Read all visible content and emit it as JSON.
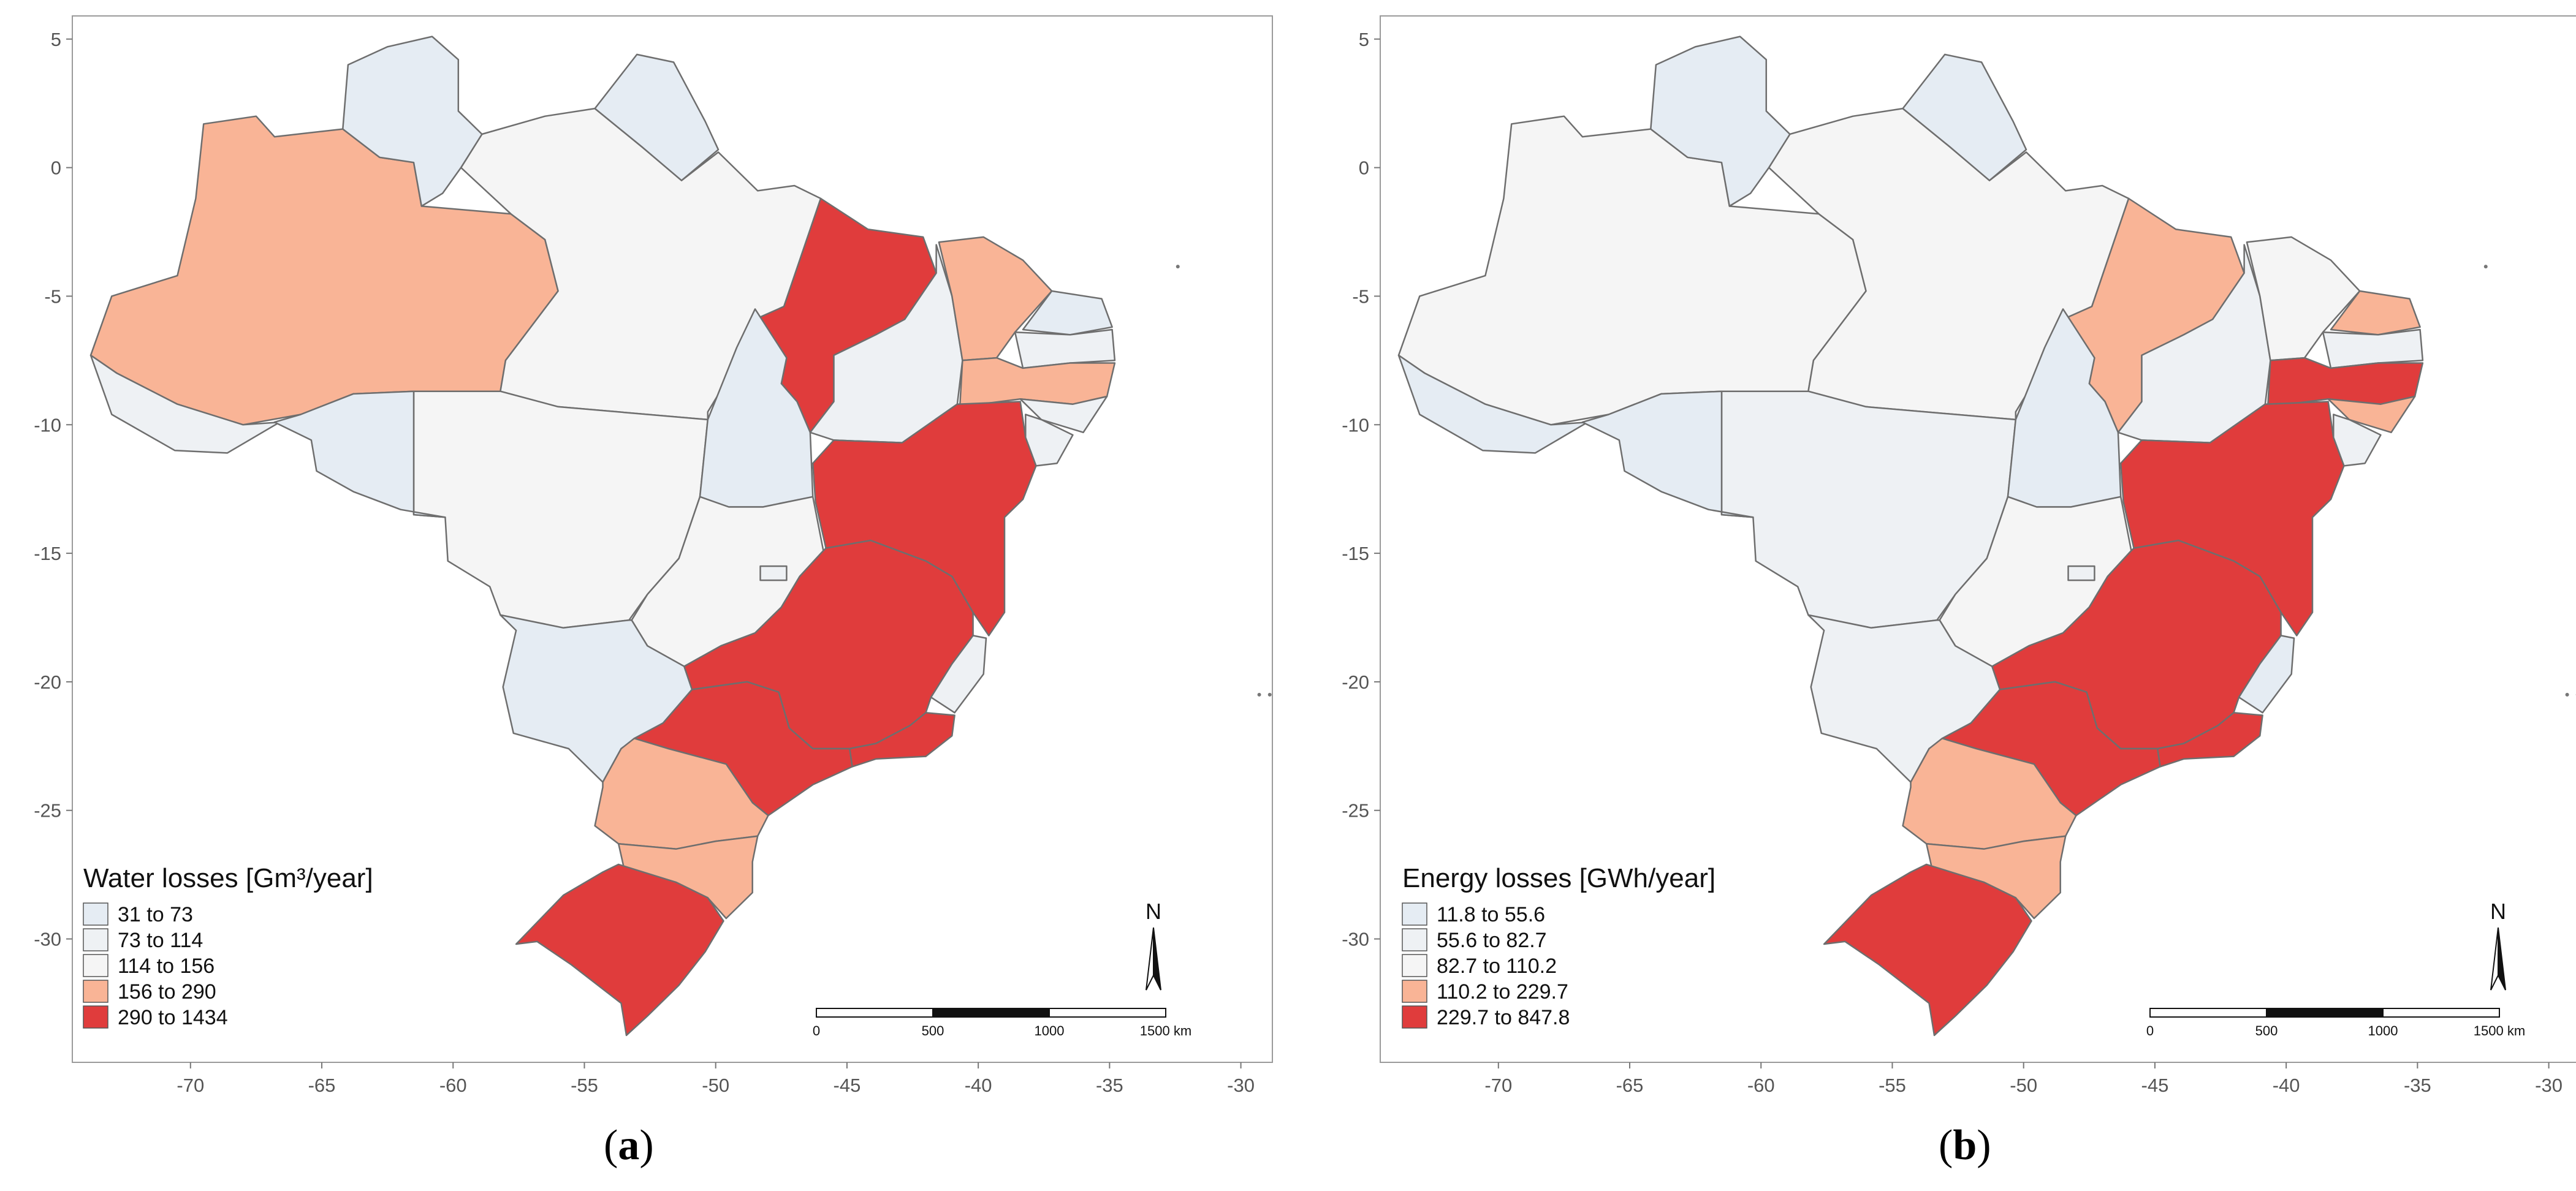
{
  "colors": {
    "class1": "#e5ecf3",
    "class2": "#eef1f4",
    "class3": "#f5f5f5",
    "class4": "#f9b496",
    "class5": "#e03c3c",
    "border": "#6e6e6e",
    "frame": "#9a9a9a"
  },
  "axes": {
    "x_ticks": [
      "-70",
      "-65",
      "-60",
      "-55",
      "-50",
      "-45",
      "-40",
      "-35",
      "-30"
    ],
    "x_values": [
      -70,
      -65,
      -60,
      -55,
      -50,
      -45,
      -40,
      -35,
      -30
    ],
    "y_ticks": [
      "5",
      "0",
      "-5",
      "-10",
      "-15",
      "-20",
      "-25",
      "-30"
    ],
    "y_values": [
      5,
      0,
      -5,
      -10,
      -15,
      -20,
      -25,
      -30
    ],
    "xlim": [
      -74.5,
      -28.8
    ],
    "ylim": [
      -34.8,
      5.9
    ]
  },
  "scalebar": {
    "ticks": [
      "0",
      "500",
      "1000",
      "1500 km"
    ]
  },
  "north_label": "N",
  "panels": [
    {
      "id": "a",
      "caption_letter": "a",
      "legend": {
        "title": "Water losses [Gm³/year]",
        "classes": [
          "31 to 73",
          "73 to 114",
          "114 to 156",
          "156 to 290",
          "290 to 1434"
        ]
      }
    },
    {
      "id": "b",
      "caption_letter": "b",
      "legend": {
        "title": "Energy losses [GWh/year]",
        "classes": [
          "11.8 to 55.6",
          "55.6 to 82.7",
          "82.7 to 110.2",
          "110.2 to 229.7",
          "229.7 to 847.8"
        ]
      }
    }
  ],
  "chart_data": {
    "type": "choropleth",
    "regions": [
      {
        "state": "AM",
        "water_class": 4,
        "energy_class": 3
      },
      {
        "state": "PA",
        "water_class": 3,
        "energy_class": 3
      },
      {
        "state": "MT",
        "water_class": 3,
        "energy_class": 2
      },
      {
        "state": "RR",
        "water_class": 1,
        "energy_class": 1
      },
      {
        "state": "AP",
        "water_class": 1,
        "energy_class": 1
      },
      {
        "state": "AC",
        "water_class": 2,
        "energy_class": 1
      },
      {
        "state": "RO",
        "water_class": 1,
        "energy_class": 1
      },
      {
        "state": "MA",
        "water_class": 5,
        "energy_class": 4
      },
      {
        "state": "TO",
        "water_class": 1,
        "energy_class": 1
      },
      {
        "state": "PI",
        "water_class": 2,
        "energy_class": 2
      },
      {
        "state": "CE",
        "water_class": 4,
        "energy_class": 3
      },
      {
        "state": "RN",
        "water_class": 1,
        "energy_class": 4
      },
      {
        "state": "PB",
        "water_class": 2,
        "energy_class": 2
      },
      {
        "state": "PE",
        "water_class": 4,
        "energy_class": 5
      },
      {
        "state": "AL",
        "water_class": 2,
        "energy_class": 4
      },
      {
        "state": "SE",
        "water_class": 2,
        "energy_class": 2
      },
      {
        "state": "BA",
        "water_class": 5,
        "energy_class": 5
      },
      {
        "state": "GO",
        "water_class": 3,
        "energy_class": 3
      },
      {
        "state": "DF",
        "water_class": 2,
        "energy_class": 2
      },
      {
        "state": "MS",
        "water_class": 1,
        "energy_class": 2
      },
      {
        "state": "MG",
        "water_class": 5,
        "energy_class": 5
      },
      {
        "state": "ES",
        "water_class": 2,
        "energy_class": 1
      },
      {
        "state": "RJ",
        "water_class": 5,
        "energy_class": 5
      },
      {
        "state": "SP",
        "water_class": 5,
        "energy_class": 5
      },
      {
        "state": "PR",
        "water_class": 4,
        "energy_class": 4
      },
      {
        "state": "SC",
        "water_class": 4,
        "energy_class": 4
      },
      {
        "state": "RS",
        "water_class": 5,
        "energy_class": 5
      }
    ]
  }
}
